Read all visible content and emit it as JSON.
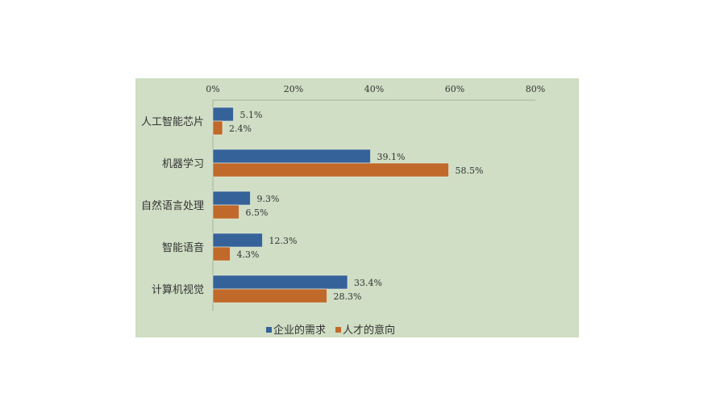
{
  "chart_data": {
    "type": "bar",
    "orientation": "horizontal",
    "title": "",
    "xlabel": "",
    "ylabel": "",
    "xlim": [
      0,
      80
    ],
    "x_ticks": [
      "0%",
      "20%",
      "40%",
      "60%",
      "80%"
    ],
    "x_axis_position": "top",
    "grid": false,
    "legend_position": "bottom",
    "background_color": "#cfdec4",
    "categories": [
      "人工智能芯片",
      "机器学习",
      "自然语言处理",
      "智能语音",
      "计算机视觉"
    ],
    "series": [
      {
        "name": "企业的需求",
        "color": "#36629a",
        "values": [
          5.1,
          39.1,
          9.3,
          12.3,
          33.4
        ],
        "labels": [
          "5.1%",
          "39.1%",
          "9.3%",
          "12.3%",
          "33.4%"
        ]
      },
      {
        "name": "人才的意向",
        "color": "#c0692a",
        "values": [
          2.4,
          58.5,
          6.5,
          4.3,
          28.3
        ],
        "labels": [
          "2.4%",
          "58.5%",
          "6.5%",
          "4.3%",
          "28.3%"
        ]
      }
    ]
  }
}
